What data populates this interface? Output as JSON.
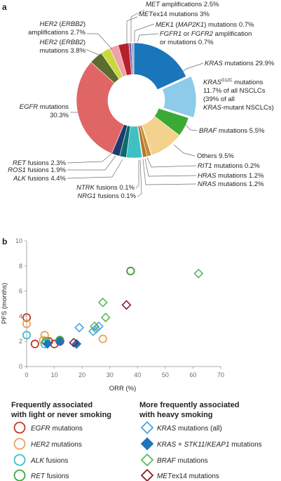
{
  "panel_a": "a",
  "panel_b": "b",
  "chart_data": [
    {
      "type": "pie",
      "slices": [
        {
          "name": "KRAS mutations 29.9%",
          "value": 18.2,
          "color": "#1b75bb"
        },
        {
          "name": "KRAS G12C mutations",
          "value": 11.7,
          "color": "#8ecae9"
        },
        {
          "name": "BRAF mutations 5.5%",
          "value": 5.5,
          "color": "#3aaa35"
        },
        {
          "name": "Others 9.5%",
          "value": 9.5,
          "color": "#f3d28e"
        },
        {
          "name": "RIT1 mutations 0.2%",
          "value": 0.2,
          "color": "#d9a443"
        },
        {
          "name": "HRAS mutations 1.2%",
          "value": 1.2,
          "color": "#c98a2e"
        },
        {
          "name": "NRAS mutations 1.2%",
          "value": 1.2,
          "color": "#b17a2a"
        },
        {
          "name": "NRG1 fusions 0.1%",
          "value": 0.1,
          "color": "#c7b29a"
        },
        {
          "name": "NTRK fusions 0.1%",
          "value": 0.1,
          "color": "#a7d3d4"
        },
        {
          "name": "ALK fusions 4.4%",
          "value": 4.4,
          "color": "#3fc1c3"
        },
        {
          "name": "ROS1 fusions 1.9%",
          "value": 1.9,
          "color": "#0e6b6e"
        },
        {
          "name": "RET fusions 2.3%",
          "value": 2.3,
          "color": "#1d3c6e"
        },
        {
          "name": "EGFR mutations 30.3%",
          "value": 30.3,
          "color": "#e06666"
        },
        {
          "name": "HER2 (ERBB2) mutations 3.8%",
          "value": 3.8,
          "color": "#5c6b2e"
        },
        {
          "name": "HER2 (ERBB2) amplifications 2.7%",
          "value": 2.7,
          "color": "#c9d93b"
        },
        {
          "name": "MET amplifications 2.5%",
          "value": 2.5,
          "color": "#f2a0a8"
        },
        {
          "name": "METex14 mutations 3%",
          "value": 3.0,
          "color": "#b5212b"
        },
        {
          "name": "MEK1 (MAP2K1) mutations 0.7%",
          "value": 0.7,
          "color": "#7b5ea7"
        },
        {
          "name": "FGFR1 or FGFR2 amplification or mutations 0.7%",
          "value": 0.7,
          "color": "#9aa8c8"
        }
      ],
      "labels": {
        "met_amp": "MET amplifications 2.5%",
        "metex14": "METex14 mutations 3%",
        "mek1": "MEK1 (MAP2K1) mutations 0.7%",
        "fgfr_1": "FGFR1 or FGFR2 amplification",
        "fgfr_2": "or mutations 0.7%",
        "her2amp_1": "HER2 (ERBB2)",
        "her2amp_2": "amplifications 2.7%",
        "her2mut_1": "HER2 (ERBB2)",
        "her2mut_2": "mutations 3.8%",
        "kras": "KRAS mutations 29.9%",
        "g12c_1": "KRASG12C mutations",
        "g12c_2": "11.7% of all NSCLCs",
        "g12c_3": "(39% of all",
        "g12c_4": "KRAS-mutant NSCLCs)",
        "egfr_1": "EGFR mutations",
        "egfr_2": "30.3%",
        "braf": "BRAF mutations 5.5%",
        "others": "Others 9.5%",
        "rit1": "RIT1 mutations 0.2%",
        "hras": "HRAS mutations 1.2%",
        "nras": "NRAS mutations 1.2%",
        "ret": "RET fusions 2.3%",
        "ros1": "ROS1 fusions 1.9%",
        "alk": "ALK fusions 4.4%",
        "ntrk": "NTRK fusions 0.1%",
        "nrg1": "NRG1 fusions 0.1%"
      }
    },
    {
      "type": "scatter",
      "xlabel": "ORR (%)",
      "ylabel": "PFS (months)",
      "xlim": [
        0,
        70
      ],
      "ylim": [
        0,
        10
      ],
      "xticks": [
        0,
        10,
        20,
        30,
        40,
        50,
        60,
        70
      ],
      "yticks": [
        0,
        2,
        4,
        6,
        8,
        10
      ],
      "series": [
        {
          "name": "EGFR mutations",
          "marker": "circle",
          "color": "#c0392b",
          "filled": false,
          "points": [
            [
              0,
              3.9
            ],
            [
              3,
              1.8
            ],
            [
              8,
              2.0
            ],
            [
              10,
              1.8
            ],
            [
              12,
              2.0
            ],
            [
              37.5,
              7.6
            ]
          ]
        },
        {
          "name": "HER2 mutations",
          "marker": "circle",
          "color": "#e8a55b",
          "filled": false,
          "points": [
            [
              0,
              3.4
            ],
            [
              6,
              2.1
            ],
            [
              6.5,
              2.5
            ],
            [
              27.5,
              2.2
            ]
          ]
        },
        {
          "name": "ALK fusions",
          "marker": "circle",
          "color": "#3fc1c3",
          "filled": false,
          "points": [
            [
              0,
              2.5
            ],
            [
              6.5,
              1.8
            ]
          ]
        },
        {
          "name": "RET fusions",
          "marker": "circle",
          "color": "#3aaa35",
          "filled": false,
          "points": [
            [
              12,
              2.1
            ],
            [
              7,
              2.0
            ],
            [
              37.5,
              7.6
            ]
          ]
        },
        {
          "name": "KRAS mutations (all)",
          "marker": "diamond",
          "color": "#4aa3df",
          "filled": false,
          "points": [
            [
              19,
              3.1
            ],
            [
              24,
              2.8
            ],
            [
              25,
              3.0
            ],
            [
              26,
              3.2
            ]
          ]
        },
        {
          "name": "KRAS + STK11/KEAP1 mutations",
          "marker": "diamond",
          "color": "#1b75bb",
          "filled": true,
          "points": [
            [
              7.5,
              1.8
            ],
            [
              12,
              2.0
            ],
            [
              18,
              1.8
            ]
          ]
        },
        {
          "name": "BRAF mutations",
          "marker": "diamond",
          "color": "#5cb85c",
          "filled": false,
          "points": [
            [
              24.5,
              3.2
            ],
            [
              27.5,
              5.1
            ],
            [
              28.5,
              3.9
            ],
            [
              62,
              7.4
            ]
          ]
        },
        {
          "name": "METex14 mutations",
          "marker": "diamond",
          "color": "#8b1e2b",
          "filled": false,
          "points": [
            [
              17,
              1.9
            ],
            [
              36,
              4.9
            ]
          ]
        }
      ]
    }
  ],
  "legend": {
    "left_header_1": "Frequently associated",
    "left_header_2": "with light or never smoking",
    "right_header_1": "More frequently associated",
    "right_header_2": "with heavy smoking",
    "left_items": [
      "EGFR mutations",
      "HER2 mutations",
      "ALK fusions",
      "RET fusions"
    ],
    "right_items": [
      "KRAS mutations (all)",
      "KRAS + STK11/KEAP1 mutations",
      "BRAF mutations",
      "METex14 mutations"
    ]
  }
}
